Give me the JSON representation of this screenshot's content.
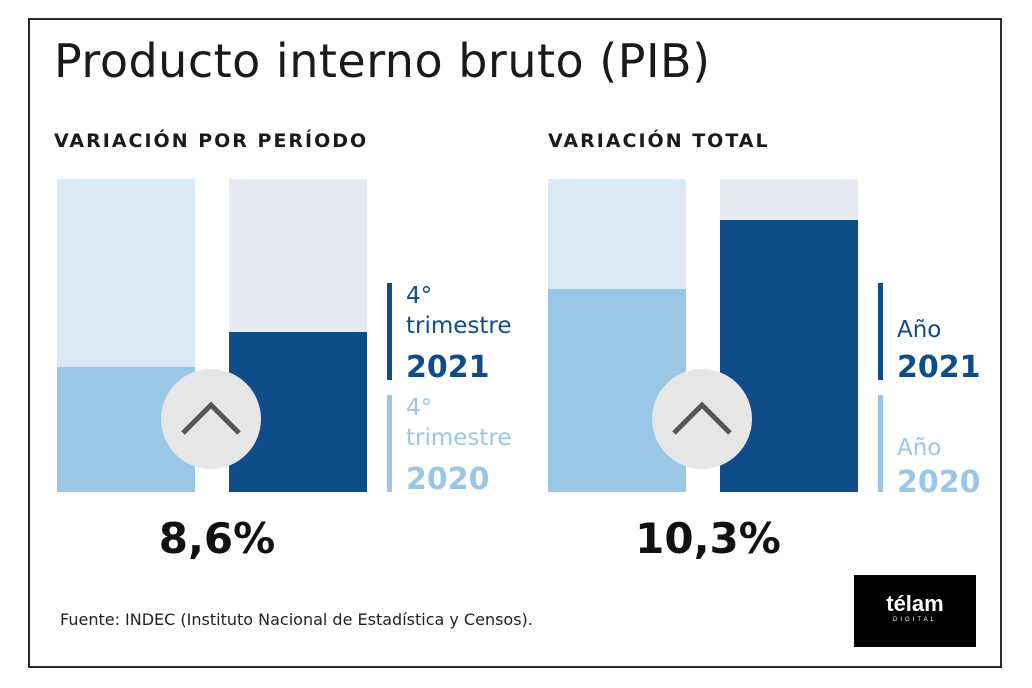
{
  "title": "Producto interno bruto (PIB)",
  "source": "Fuente: INDEC (Instituto Nacional de Estadística y Censos).",
  "logo": {
    "text": "télam",
    "subtext": "DIGITAL"
  },
  "colors": {
    "bar_2020": "#9bc7e6",
    "bar_2020_bg": "#dbe8f5",
    "bar_2021": "#0f4c8a",
    "bar_2021_bg": "#e8eaf2",
    "circle": "#e6e6e6",
    "arrow": "#555555"
  },
  "icons": {
    "up_arrow": "chevron-up-icon"
  },
  "chart_data": [
    {
      "type": "bar",
      "title": "VARIACIÓN POR PERÍODO",
      "categories": [
        "4° trimestre 2020",
        "4° trimestre 2021"
      ],
      "values": [
        0.4,
        0.51
      ],
      "value_label": "8,6%",
      "ylim": [
        0,
        1
      ],
      "grid": false,
      "legend": {
        "placement": "right",
        "items": [
          {
            "label": "4°\ntrimestre",
            "year": "2021",
            "color": "#0f4c8a"
          },
          {
            "label": "4°\ntrimestre",
            "year": "2020",
            "color": "#9bc7e6"
          }
        ]
      }
    },
    {
      "type": "bar",
      "title": "VARIACIÓN TOTAL",
      "categories": [
        "Año 2020",
        "Año 2021"
      ],
      "values": [
        0.65,
        0.87
      ],
      "value_label": "10,3%",
      "ylim": [
        0,
        1
      ],
      "grid": false,
      "legend": {
        "placement": "right",
        "items": [
          {
            "label": "Año",
            "year": "2021",
            "color": "#0f4c8a"
          },
          {
            "label": "Año",
            "year": "2020",
            "color": "#9bc7e6"
          }
        ]
      }
    }
  ]
}
